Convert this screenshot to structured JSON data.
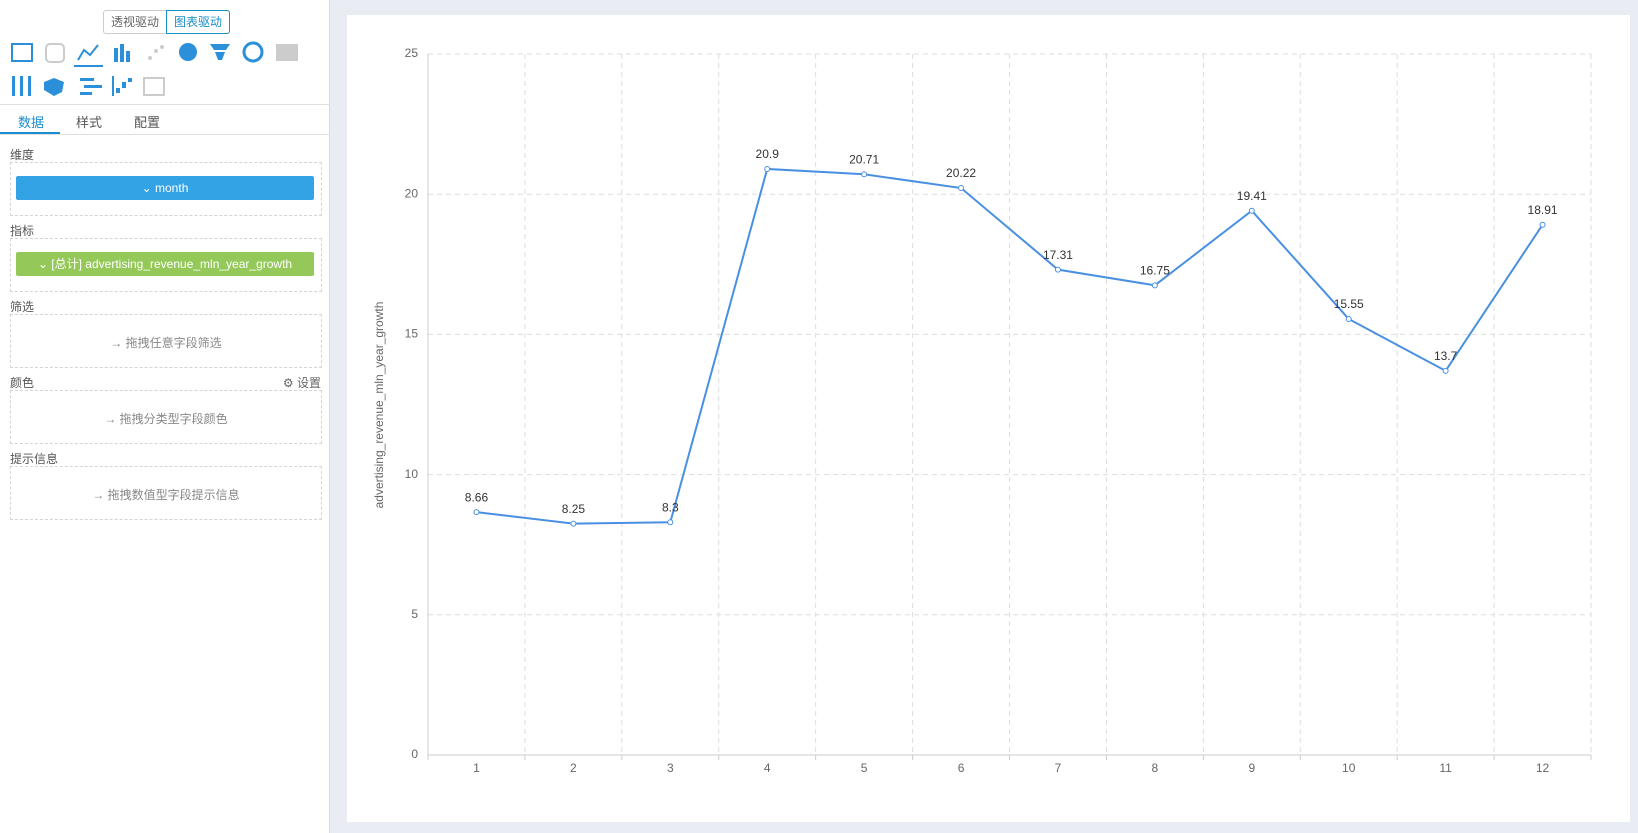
{
  "sidebar": {
    "mode_buttons": [
      "透视驱动",
      "图表驱动"
    ],
    "tabs": [
      "数据",
      "样式",
      "配置"
    ],
    "dimension": {
      "label": "维度",
      "field": "month"
    },
    "metric": {
      "label": "指标",
      "field": "[总计] advertising_revenue_mln_year_growth"
    },
    "filter": {
      "label": "筛选",
      "hint": "拖拽任意字段筛选"
    },
    "color": {
      "label": "颜色",
      "settings": "设置",
      "hint": "拖拽分类型字段颜色"
    },
    "tooltip": {
      "label": "提示信息",
      "hint": "拖拽数值型字段提示信息"
    }
  },
  "chart_data": {
    "type": "line",
    "y_label": "advertising_revenue_mln_year_growth",
    "categories": [
      "1",
      "2",
      "3",
      "4",
      "5",
      "6",
      "7",
      "8",
      "9",
      "10",
      "11",
      "12"
    ],
    "series": [
      {
        "name": "advertising_revenue_mln_year_growth",
        "color": "#4a90e2",
        "values": [
          8.66,
          8.25,
          8.3,
          20.9,
          20.71,
          20.22,
          17.31,
          16.75,
          19.41,
          15.55,
          13.7,
          18.91
        ]
      }
    ],
    "ylim": [
      0,
      25
    ],
    "yticks": [
      0,
      5,
      10,
      15,
      20,
      25
    ],
    "grid": true
  }
}
